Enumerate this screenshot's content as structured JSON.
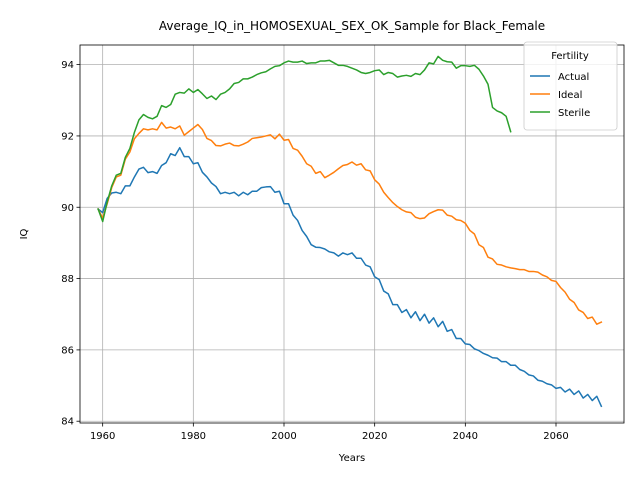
{
  "chart_data": {
    "type": "line",
    "title": "Average_IQ_in_HOMOSEXUAL_SEX_OK_Sample for Black_Female",
    "xlabel": "Years",
    "ylabel": "IQ",
    "xlim": [
      1955,
      2075
    ],
    "ylim": [
      83.95,
      94.55
    ],
    "xticks": [
      1960,
      1980,
      2000,
      2020,
      2040,
      2060
    ],
    "yticks": [
      84,
      86,
      88,
      90,
      92,
      94
    ],
    "grid": true,
    "legend": {
      "title": "Fertility",
      "placement": "top-right"
    },
    "series": [
      {
        "name": "Actual",
        "color": "#1f77b4",
        "x": [
          1959,
          1960,
          1961,
          1962,
          1963,
          1964,
          1965,
          1966,
          1967,
          1968,
          1969,
          1970,
          1971,
          1972,
          1973,
          1974,
          1975,
          1976,
          1977,
          1978,
          1979,
          1980,
          1981,
          1982,
          1983,
          1984,
          1985,
          1986,
          1987,
          1988,
          1989,
          1990,
          1991,
          1992,
          1993,
          1994,
          1995,
          1996,
          1997,
          1998,
          1999,
          2000,
          2001,
          2002,
          2003,
          2004,
          2005,
          2006,
          2007,
          2008,
          2009,
          2010,
          2011,
          2012,
          2013,
          2014,
          2015,
          2016,
          2017,
          2018,
          2019,
          2020,
          2021,
          2022,
          2023,
          2024,
          2025,
          2026,
          2027,
          2028,
          2029,
          2030,
          2031,
          2032,
          2033,
          2034,
          2035,
          2036,
          2037,
          2038,
          2039,
          2040,
          2041,
          2042,
          2043,
          2044,
          2045,
          2046,
          2047,
          2048,
          2049,
          2050,
          2051,
          2052,
          2053,
          2054,
          2055,
          2056,
          2057,
          2058,
          2059,
          2060,
          2061,
          2062,
          2063,
          2064,
          2065,
          2066,
          2067,
          2068,
          2069,
          2070
        ],
        "values": [
          89.95,
          89.85,
          90.25,
          90.4,
          90.42,
          90.38,
          90.6,
          90.6,
          90.85,
          91.07,
          91.12,
          90.97,
          91.0,
          90.95,
          91.17,
          91.25,
          91.5,
          91.45,
          91.67,
          91.42,
          91.42,
          91.22,
          91.25,
          90.98,
          90.85,
          90.68,
          90.58,
          90.38,
          90.42,
          90.38,
          90.42,
          90.32,
          90.42,
          90.35,
          90.45,
          90.45,
          90.55,
          90.57,
          90.58,
          90.42,
          90.45,
          90.1,
          90.1,
          89.78,
          89.63,
          89.35,
          89.18,
          88.95,
          88.88,
          88.87,
          88.83,
          88.75,
          88.72,
          88.63,
          88.72,
          88.67,
          88.72,
          88.57,
          88.57,
          88.38,
          88.33,
          88.05,
          87.97,
          87.65,
          87.57,
          87.27,
          87.27,
          87.05,
          87.13,
          86.9,
          87.07,
          86.82,
          87.0,
          86.75,
          86.9,
          86.65,
          86.8,
          86.52,
          86.57,
          86.32,
          86.32,
          86.17,
          86.15,
          86.03,
          85.98,
          85.9,
          85.85,
          85.78,
          85.77,
          85.67,
          85.67,
          85.57,
          85.57,
          85.45,
          85.4,
          85.3,
          85.27,
          85.15,
          85.12,
          85.05,
          85.02,
          84.92,
          84.95,
          84.82,
          84.9,
          84.75,
          84.85,
          84.65,
          84.75,
          84.58,
          84.7,
          84.42
        ]
      },
      {
        "name": "Ideal",
        "color": "#ff7f0e",
        "x": [
          1959,
          1960,
          1961,
          1962,
          1963,
          1964,
          1965,
          1966,
          1967,
          1968,
          1969,
          1970,
          1971,
          1972,
          1973,
          1974,
          1975,
          1976,
          1977,
          1978,
          1979,
          1980,
          1981,
          1982,
          1983,
          1984,
          1985,
          1986,
          1987,
          1988,
          1989,
          1990,
          1991,
          1992,
          1993,
          1994,
          1995,
          1996,
          1997,
          1998,
          1999,
          2000,
          2001,
          2002,
          2003,
          2004,
          2005,
          2006,
          2007,
          2008,
          2009,
          2010,
          2011,
          2012,
          2013,
          2014,
          2015,
          2016,
          2017,
          2018,
          2019,
          2020,
          2021,
          2022,
          2023,
          2024,
          2025,
          2026,
          2027,
          2028,
          2029,
          2030,
          2031,
          2032,
          2033,
          2034,
          2035,
          2036,
          2037,
          2038,
          2039,
          2040,
          2041,
          2042,
          2043,
          2044,
          2045,
          2046,
          2047,
          2048,
          2049,
          2050,
          2051,
          2052,
          2053,
          2054,
          2055,
          2056,
          2057,
          2058,
          2059,
          2060,
          2061,
          2062,
          2063,
          2064,
          2065,
          2066,
          2067,
          2068,
          2069,
          2070
        ],
        "values": [
          89.95,
          89.7,
          90.1,
          90.55,
          90.85,
          90.9,
          91.35,
          91.55,
          91.92,
          92.07,
          92.2,
          92.17,
          92.2,
          92.17,
          92.38,
          92.22,
          92.25,
          92.2,
          92.28,
          92.02,
          92.12,
          92.22,
          92.32,
          92.18,
          91.93,
          91.87,
          91.73,
          91.72,
          91.77,
          91.8,
          91.73,
          91.72,
          91.77,
          91.83,
          91.93,
          91.95,
          91.97,
          92.0,
          92.03,
          91.92,
          92.05,
          91.88,
          91.9,
          91.65,
          91.6,
          91.43,
          91.22,
          91.15,
          90.95,
          91.0,
          90.83,
          90.9,
          90.98,
          91.08,
          91.17,
          91.2,
          91.27,
          91.18,
          91.22,
          91.05,
          91.02,
          90.77,
          90.65,
          90.42,
          90.27,
          90.13,
          90.02,
          89.93,
          89.87,
          89.85,
          89.72,
          89.68,
          89.7,
          89.82,
          89.88,
          89.93,
          89.92,
          89.78,
          89.75,
          89.65,
          89.63,
          89.55,
          89.35,
          89.25,
          88.95,
          88.87,
          88.6,
          88.55,
          88.4,
          88.38,
          88.33,
          88.3,
          88.28,
          88.25,
          88.25,
          88.2,
          88.2,
          88.18,
          88.1,
          88.05,
          87.95,
          87.92,
          87.75,
          87.62,
          87.42,
          87.33,
          87.12,
          87.05,
          86.88,
          86.92,
          86.72,
          86.78
        ]
      },
      {
        "name": "Sterile",
        "color": "#2ca02c",
        "x": [
          1959,
          1960,
          1961,
          1962,
          1963,
          1964,
          1965,
          1966,
          1967,
          1968,
          1969,
          1970,
          1971,
          1972,
          1973,
          1974,
          1975,
          1976,
          1977,
          1978,
          1979,
          1980,
          1981,
          1982,
          1983,
          1984,
          1985,
          1986,
          1987,
          1988,
          1989,
          1990,
          1991,
          1992,
          1993,
          1994,
          1995,
          1996,
          1997,
          1998,
          1999,
          2000,
          2001,
          2002,
          2003,
          2004,
          2005,
          2006,
          2007,
          2008,
          2009,
          2010,
          2011,
          2012,
          2013,
          2014,
          2015,
          2016,
          2017,
          2018,
          2019,
          2020,
          2021,
          2022,
          2023,
          2024,
          2025,
          2026,
          2027,
          2028,
          2029,
          2030,
          2031,
          2032,
          2033,
          2034,
          2035,
          2036,
          2037,
          2038,
          2039,
          2040,
          2041,
          2042,
          2043,
          2044,
          2045,
          2046,
          2047,
          2048,
          2049,
          2050
        ],
        "values": [
          89.95,
          89.6,
          90.15,
          90.6,
          90.9,
          90.95,
          91.4,
          91.65,
          92.1,
          92.45,
          92.6,
          92.52,
          92.48,
          92.55,
          92.85,
          92.8,
          92.88,
          93.17,
          93.22,
          93.2,
          93.32,
          93.22,
          93.3,
          93.18,
          93.05,
          93.12,
          93.02,
          93.17,
          93.22,
          93.32,
          93.47,
          93.5,
          93.6,
          93.6,
          93.65,
          93.72,
          93.77,
          93.8,
          93.88,
          93.95,
          93.97,
          94.05,
          94.1,
          94.07,
          94.07,
          94.1,
          94.03,
          94.05,
          94.05,
          94.1,
          94.1,
          94.12,
          94.05,
          93.98,
          93.98,
          93.95,
          93.9,
          93.85,
          93.78,
          93.75,
          93.78,
          93.83,
          93.85,
          93.72,
          93.78,
          93.75,
          93.65,
          93.68,
          93.7,
          93.67,
          93.75,
          93.72,
          93.85,
          94.05,
          94.02,
          94.23,
          94.12,
          94.08,
          94.07,
          93.9,
          93.97,
          93.97,
          93.95,
          93.98,
          93.87,
          93.68,
          93.45,
          92.8,
          92.7,
          92.65,
          92.55,
          92.12
        ]
      }
    ]
  }
}
